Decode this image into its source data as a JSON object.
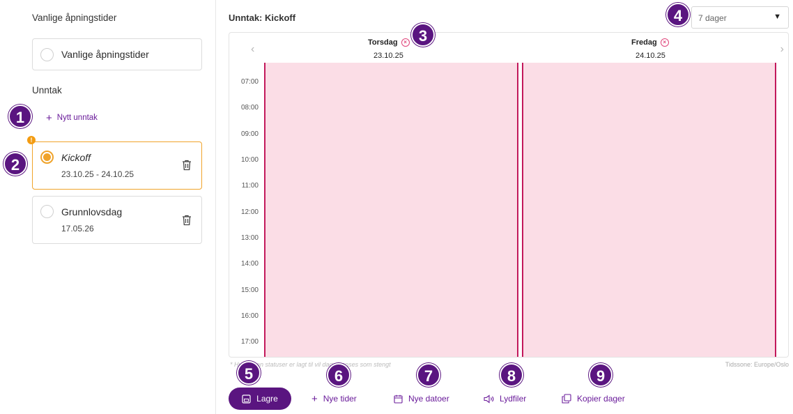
{
  "sidebar": {
    "regular_title": "Vanlige åpningstider",
    "regular_option": "Vanlige åpningstider",
    "exceptions_title": "Unntak",
    "add_exception": "Nytt unntak",
    "exceptions": [
      {
        "name": "Kickoff",
        "dates": "23.10.25 - 24.10.25",
        "selected": true,
        "warning": "!"
      },
      {
        "name": "Grunnlovsdag",
        "dates": "17.05.26",
        "selected": false
      }
    ]
  },
  "main": {
    "title": "Unntak: Kickoff",
    "range_select": {
      "value": "7 dager"
    },
    "calendar": {
      "days": [
        {
          "name": "Torsdag",
          "date": "23.10.25"
        },
        {
          "name": "Fredag",
          "date": "24.10.25"
        }
      ],
      "hours": [
        "07:00",
        "08:00",
        "09:00",
        "10:00",
        "11:00",
        "12:00",
        "13:00",
        "14:00",
        "15:00",
        "16:00",
        "17:00"
      ],
      "footnote": "* Hvis ingen statuser er lagt til vil dagen anses som stengt",
      "timezone": "Tidssone: Europe/Oslo",
      "block_color": "#fbdde6",
      "block_border_color": "#c2185b"
    }
  },
  "toolbar": {
    "save": "Lagre",
    "new_times": "Nye tider",
    "new_dates": "Nye datoer",
    "audio_files": "Lydfiler",
    "copy_days": "Kopier dager"
  },
  "badges": [
    "1",
    "2",
    "3",
    "4",
    "5",
    "6",
    "7",
    "8",
    "9"
  ],
  "colors": {
    "brand": "#5a1580",
    "accent": "#6a1b9a",
    "warning": "#f0a32a"
  }
}
